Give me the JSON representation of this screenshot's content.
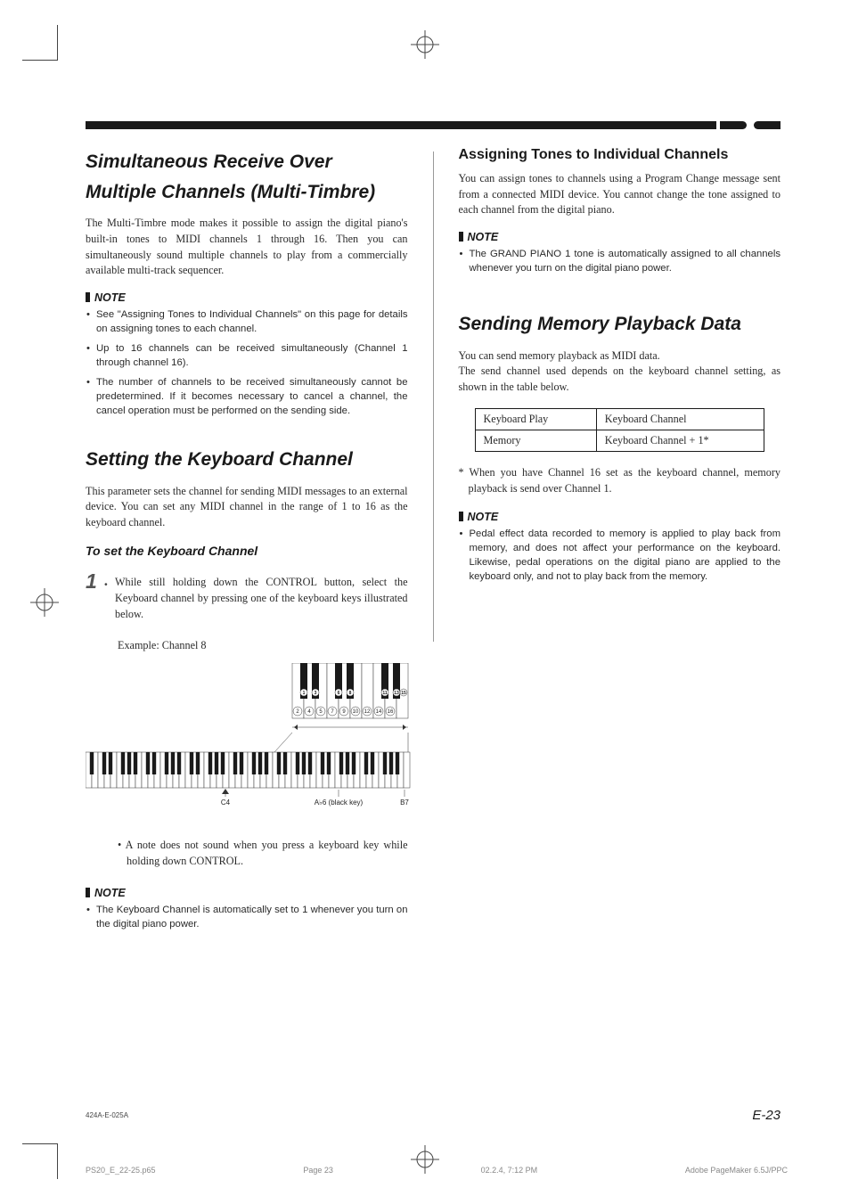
{
  "left": {
    "s1": {
      "title": "Simultaneous Receive Over Multiple Channels (Multi-Timbre)",
      "body": "The Multi-Timbre mode makes it possible to assign the  digital piano's built-in tones to MIDI channels 1 through 16. Then you can simultaneously sound multiple channels to play from a commercially available multi-track sequencer.",
      "note_head": "NOTE",
      "note1": "See \"Assigning Tones to Individual Channels\" on this page for details on assigning tones to each channel.",
      "note2": "Up to 16 channels can be received simultaneously (Channel 1 through channel 16).",
      "note3": "The number of channels to be received simultaneously cannot be predetermined. If it becomes necessary to cancel a channel, the cancel operation must be performed on the sending side."
    },
    "s2": {
      "title": "Setting the Keyboard Channel",
      "body": "This parameter sets the channel for sending MIDI messages to an external device. You can set any MIDI channel in the range of 1 to 16 as the keyboard channel.",
      "sub": "To set the Keyboard Channel",
      "step_num": "1",
      "step_body": "While still holding down the CONTROL button, select the Keyboard channel by pressing one of the keyboard keys illustrated below.",
      "example": "Example: Channel 8",
      "step_note": "• A note does not sound when you press a keyboard key while holding down CONTROL.",
      "note_head": "NOTE",
      "note1": "The Keyboard Channel is automatically set to 1 whenever you turn on the digital piano power."
    },
    "diagram": {
      "c4": "C4",
      "ab6": "A♭6 (black key)",
      "b7": "B7",
      "nums": [
        "1",
        "2",
        "3",
        "4",
        "5",
        "6",
        "7",
        "8",
        "9",
        "10",
        "11",
        "12",
        "13",
        "14",
        "15",
        "16"
      ]
    }
  },
  "right": {
    "s1": {
      "title": "Assigning Tones to Individual Channels",
      "body": "You can assign tones to channels using a Program Change message sent from a connected MIDI device. You cannot change the tone assigned to each channel from the digital piano.",
      "note_head": "NOTE",
      "note1": "The GRAND PIANO 1 tone is automatically assigned to all channels whenever you turn on the digital piano power."
    },
    "s2": {
      "title": "Sending Memory Playback Data",
      "body": "You can send memory playback as MIDI data.\nThe send channel used depends on the keyboard channel setting, as shown in the table below.",
      "tbl": {
        "r1c1": "Keyboard Play",
        "r1c2": "Keyboard Channel",
        "r2c1": "Memory",
        "r2c2": "Keyboard Channel + 1*"
      },
      "footnote": "* When you have Channel 16 set as the keyboard channel, memory playback is send over Channel 1.",
      "note_head": "NOTE",
      "note1": "Pedal effect data recorded to memory is applied to play back from memory, and does not affect your performance on the keyboard. Likewise, pedal operations on the digital piano are applied to the keyboard only, and not to play back from the memory."
    }
  },
  "footer": {
    "doc_code": "424A-E-025A",
    "page_label": "E-23",
    "slug_file": "PS20_E_22-25.p65",
    "slug_page": "Page 23",
    "slug_date": "02.2.4, 7:12 PM",
    "slug_app": "Adobe PageMaker 6.5J/PPC"
  }
}
